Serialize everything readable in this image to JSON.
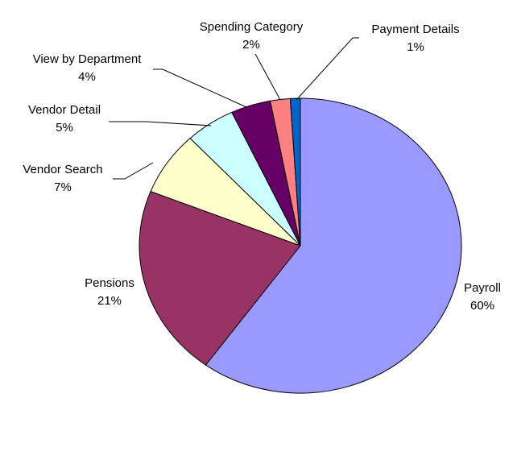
{
  "chart_data": {
    "type": "pie",
    "categories": [
      "Payroll",
      "Pensions",
      "Vendor Search",
      "Vendor Detail",
      "View by Department",
      "Spending Category",
      "Payment Details"
    ],
    "values": [
      60,
      21,
      7,
      5,
      4,
      2,
      1
    ],
    "value_labels": [
      "60%",
      "21%",
      "7%",
      "5%",
      "4%",
      "2%",
      "1%"
    ],
    "colors": [
      "#9999ff",
      "#993366",
      "#ffffcc",
      "#ccffff",
      "#660066",
      "#ff8080",
      "#0066cc"
    ]
  }
}
